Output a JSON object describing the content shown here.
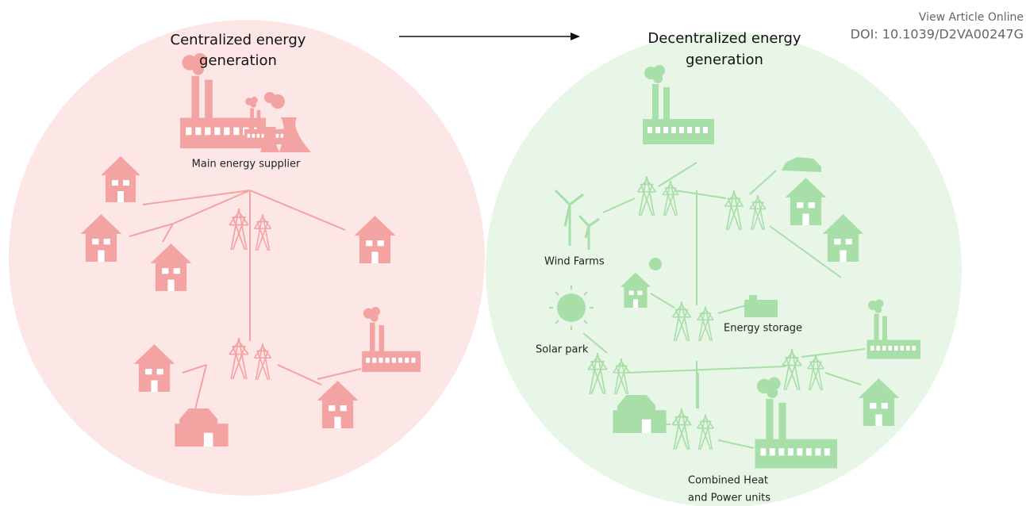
{
  "header": {
    "link": "View Article Online",
    "doi": "DOI: 10.1039/D2VA00247G"
  },
  "left": {
    "title": [
      "Centralized energy",
      "generation"
    ],
    "supplier": "Main energy supplier"
  },
  "right": {
    "title": [
      "Decentralized energy",
      "generation"
    ],
    "wind": "Wind Farms",
    "solar": "Solar park",
    "storage": "Energy storage",
    "chp": [
      "Combined Heat",
      "and Power units"
    ]
  }
}
